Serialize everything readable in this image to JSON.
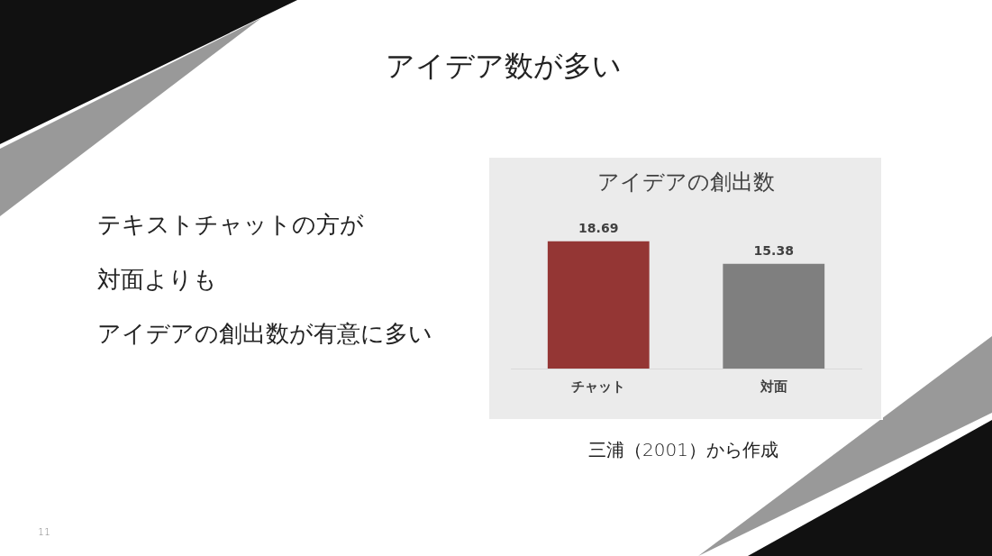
{
  "chart_data": {
    "type": "bar",
    "title": "アイデアの創出数",
    "categories": [
      "チャット",
      "対面"
    ],
    "values": [
      18.69,
      15.38
    ],
    "colors": [
      "#943634",
      "#7f7f7f"
    ],
    "data_labels": true,
    "grid": false,
    "legend": false,
    "annotations": [
      "アイデア数が多い",
      "テキストチャットの方が",
      "対面よりも",
      "アイデアの創出数が有意に多い",
      "三浦（2001）から作成",
      "11"
    ]
  }
}
